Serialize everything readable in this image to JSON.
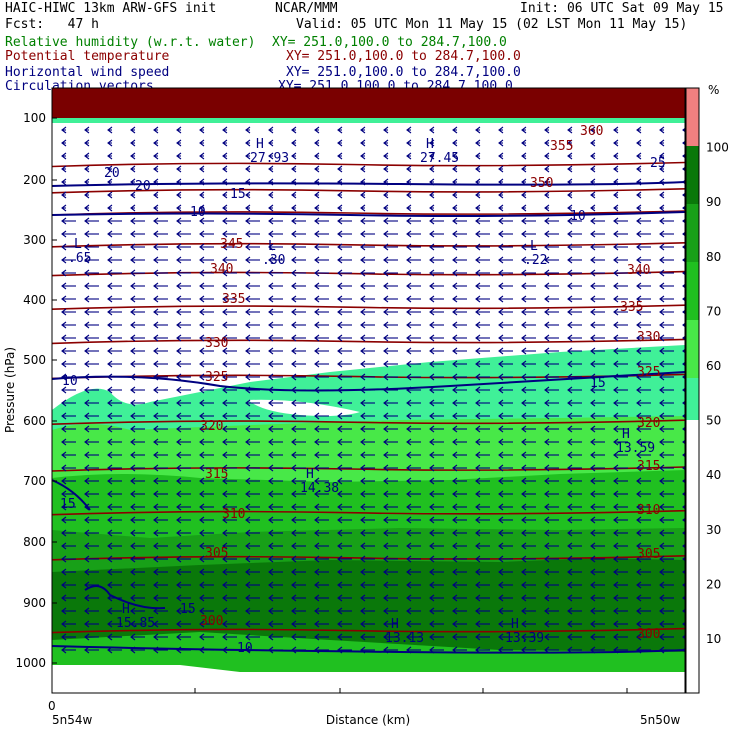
{
  "header": {
    "title_left": "HAIC-HIWC 13km ARW-GFS init",
    "title_mid": "NCAR/MMM",
    "init": "Init: 06 UTC Sat 09 May 15",
    "fcst": "Fcst:   47 h",
    "valid": "Valid: 05 UTC Mon 11 May 15 (02 LST Mon 11 May 15)"
  },
  "fields": [
    {
      "name": "Relative humidity (w.r.t. water)",
      "xy": "XY= 251.0,100.0 to 284.7,100.0",
      "color": "#008000"
    },
    {
      "name": "Potential temperature",
      "xy": "XY= 251.0,100.0 to 284.7,100.0",
      "color": "#8b0000"
    },
    {
      "name": "Horizontal wind speed",
      "xy": "XY= 251.0,100.0 to 284.7,100.0",
      "color": "#000080"
    },
    {
      "name": "Circulation vectors",
      "xy": "XY= 251.0,100.0 to 284.7,100.0",
      "color": "#000080"
    }
  ],
  "axes": {
    "ylabel": "Pressure (hPa)",
    "xlabel": "Distance (km)",
    "x_start_tick": "0",
    "x_left": "5n54w",
    "x_right": "5n50w",
    "yticks": [
      "100",
      "200",
      "300",
      "400",
      "500",
      "600",
      "700",
      "800",
      "900",
      "1000"
    ],
    "colorbar_unit": "%",
    "colorbar_ticks": [
      "10",
      "20",
      "30",
      "40",
      "50",
      "60",
      "70",
      "80",
      "90",
      "100"
    ]
  },
  "colors": {
    "rh_50_60": "#40f098",
    "rh_60_70": "#48e848",
    "rh_70_80": "#20c020",
    "rh_80_90": "#18a018",
    "rh_90_100": "#0a780a",
    "rh_100": "#f08080",
    "upper_band": "#7a0000",
    "theta": "#8b0000",
    "wind": "#000080"
  },
  "chart_data": {
    "type": "cross-section",
    "title": "HAIC-HIWC 13km ARW-GFS init",
    "xlabel": "Distance (km)",
    "ylabel": "Pressure (hPa)",
    "ylim": [
      1050,
      60
    ],
    "theta_contours": [
      {
        "value": "345",
        "p": 308
      },
      {
        "value": "340",
        "p": 356
      },
      {
        "value": "335",
        "p": 412
      },
      {
        "value": "330",
        "p": 469
      },
      {
        "value": "325",
        "p": 527
      },
      {
        "value": "320",
        "p": 602
      },
      {
        "value": "315",
        "p": 680
      },
      {
        "value": "310",
        "p": 752
      },
      {
        "value": "305",
        "p": 826
      },
      {
        "value": "300",
        "p": 946
      },
      {
        "value": "350",
        "p": 255
      },
      {
        "value": "355",
        "p": 218
      },
      {
        "value": "360",
        "p": 175
      }
    ],
    "theta_labels": [
      "345",
      "340",
      "335",
      "330",
      "325",
      "320",
      "315",
      "310",
      "305",
      "300",
      "300",
      "305",
      "310",
      "315",
      "320",
      "325",
      "330",
      "335",
      "340",
      "350",
      "355",
      "360"
    ],
    "wind_labels": [
      "10",
      "10",
      "15",
      "20",
      "10",
      "15",
      "15",
      "10",
      "25",
      "20",
      "15"
    ],
    "extrema": [
      {
        "type": "H",
        "value": "27.93"
      },
      {
        "type": "H",
        "value": "27.45"
      },
      {
        "type": "L",
        "value": ".65"
      },
      {
        "type": "L",
        "value": ".30"
      },
      {
        "type": "L",
        "value": ".22"
      },
      {
        "type": "H",
        "value": "14.38"
      },
      {
        "type": "H",
        "value": "13.59"
      },
      {
        "type": "H",
        "value": "15.85"
      },
      {
        "type": "H",
        "value": "13.13"
      },
      {
        "type": "H",
        "value": "13.39"
      }
    ]
  }
}
